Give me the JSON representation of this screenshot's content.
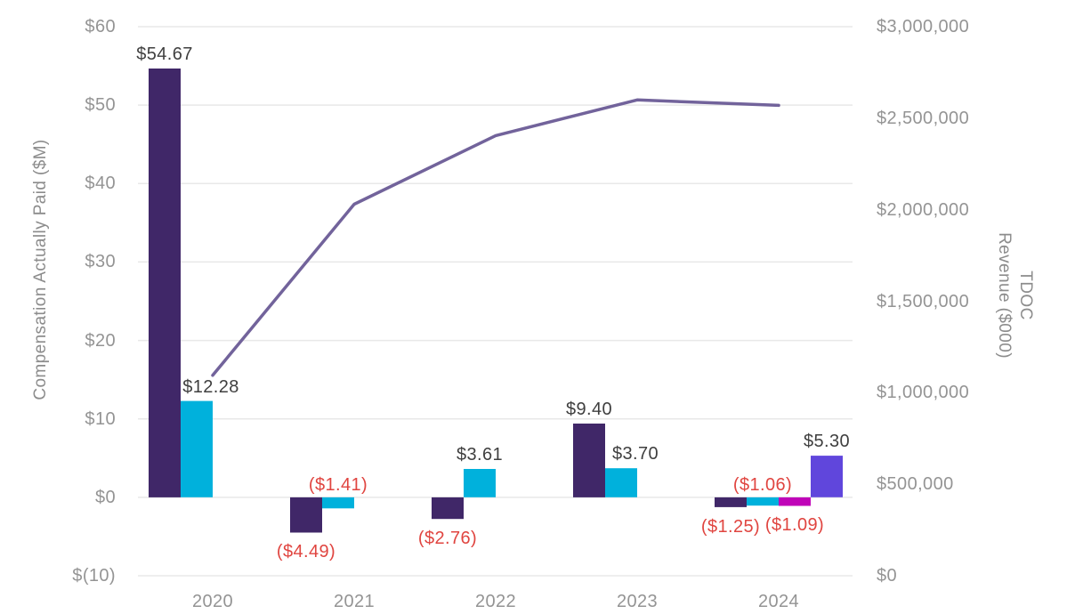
{
  "chart_data": {
    "type": "bar+line combo",
    "categories": [
      "2020",
      "2021",
      "2022",
      "2023",
      "2024"
    ],
    "series": [
      {
        "name": "cap-bar-dark-purple",
        "type": "bar",
        "color": "#402768",
        "values": [
          54.67,
          -4.49,
          -2.76,
          9.4,
          -1.25
        ],
        "labels": [
          "$54.67",
          "($4.49)",
          "($2.76)",
          "$9.40",
          "($1.25)"
        ]
      },
      {
        "name": "cap-bar-cyan",
        "type": "bar",
        "color": "#00B1DC",
        "values": [
          12.28,
          -1.41,
          3.61,
          3.7,
          -1.06
        ],
        "labels": [
          "$12.28",
          "($1.41)",
          "$3.61",
          "$3.70",
          "($1.06)"
        ]
      },
      {
        "name": "cap-bar-magenta",
        "type": "bar",
        "color": "#C004B8",
        "values": [
          null,
          null,
          null,
          null,
          -1.09
        ],
        "labels": [
          null,
          null,
          null,
          null,
          "($1.09)"
        ]
      },
      {
        "name": "cap-bar-violet",
        "type": "bar",
        "color": "#6046DC",
        "values": [
          null,
          null,
          null,
          null,
          5.3
        ],
        "labels": [
          null,
          null,
          null,
          null,
          "$5.30"
        ]
      },
      {
        "name": "tdoc-revenue-line",
        "type": "line",
        "color": "#72639B",
        "values": [
          1095000,
          2030000,
          2405000,
          2600000,
          2570000
        ]
      }
    ],
    "left_axis": {
      "label": "Compensation Actually Paid ($M)",
      "min": -10,
      "max": 60,
      "step": 10,
      "ticks": [
        "$(10)",
        "$0",
        "$10",
        "$20",
        "$30",
        "$40",
        "$50",
        "$60"
      ]
    },
    "right_axis": {
      "label": "TDOC Revenue ($000)",
      "label_lines": [
        "TDOC",
        "Revenue ($000)"
      ],
      "min": 0,
      "max": 3000000,
      "step": 500000,
      "ticks": [
        "$0",
        "$500,000",
        "$1,000,000",
        "$1,500,000",
        "$2,000,000",
        "$2,500,000",
        "$3,000,000"
      ]
    },
    "legend": "none",
    "grid": "horizontal",
    "colors": {
      "positive_label": "#3F3F3F",
      "negative_label": "#E04540",
      "tick_label": "#949494",
      "axis_title": "#8C8C8C",
      "grid": "#E8E8E8",
      "background": "#FFFFFF"
    }
  }
}
